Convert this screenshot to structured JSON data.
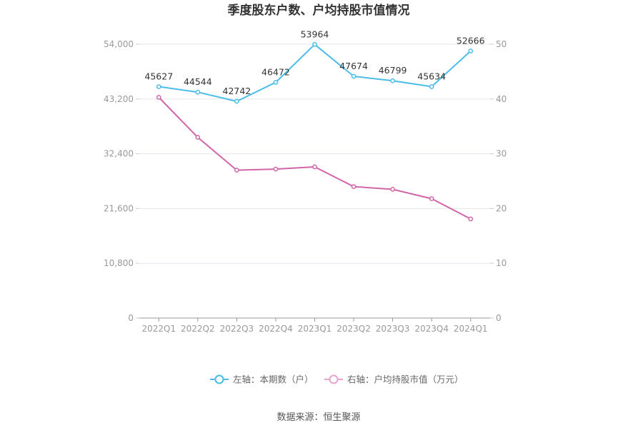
{
  "chart_data": {
    "type": "line",
    "title": "季度股东户数、户均持股市值情况",
    "categories": [
      "2022Q1",
      "2022Q2",
      "2022Q3",
      "2022Q4",
      "2023Q1",
      "2023Q2",
      "2023Q3",
      "2023Q4",
      "2024Q1"
    ],
    "series": [
      {
        "name": "左轴：本期数（户）",
        "axis": "left",
        "color": "#4bbde8",
        "values": [
          45627,
          44544,
          42742,
          46472,
          53964,
          47674,
          46799,
          45634,
          52666
        ],
        "labels": [
          "45627",
          "44544",
          "42742",
          "46472",
          "53964",
          "47674",
          "46799",
          "45634",
          "52666"
        ]
      },
      {
        "name": "右轴：户均持股市值（万元）",
        "axis": "right",
        "color": "#d066a8",
        "values": [
          40.3,
          33.0,
          27.0,
          27.2,
          27.6,
          24.0,
          23.5,
          21.8,
          18.1
        ]
      }
    ],
    "y_left": {
      "min": 0,
      "max": 54000,
      "ticks": [
        0,
        10800,
        21600,
        32400,
        43200,
        54000
      ],
      "tick_labels": [
        "0",
        "10,800",
        "21,600",
        "32,400",
        "43,200",
        "54,000"
      ]
    },
    "y_right": {
      "min": 0,
      "max": 50,
      "ticks": [
        0,
        10,
        20,
        30,
        40,
        50
      ],
      "tick_labels": [
        "0",
        "10",
        "20",
        "30",
        "40",
        "50"
      ]
    },
    "grid": true,
    "legend_position": "bottom"
  },
  "source": "数据来源：恒生聚源"
}
